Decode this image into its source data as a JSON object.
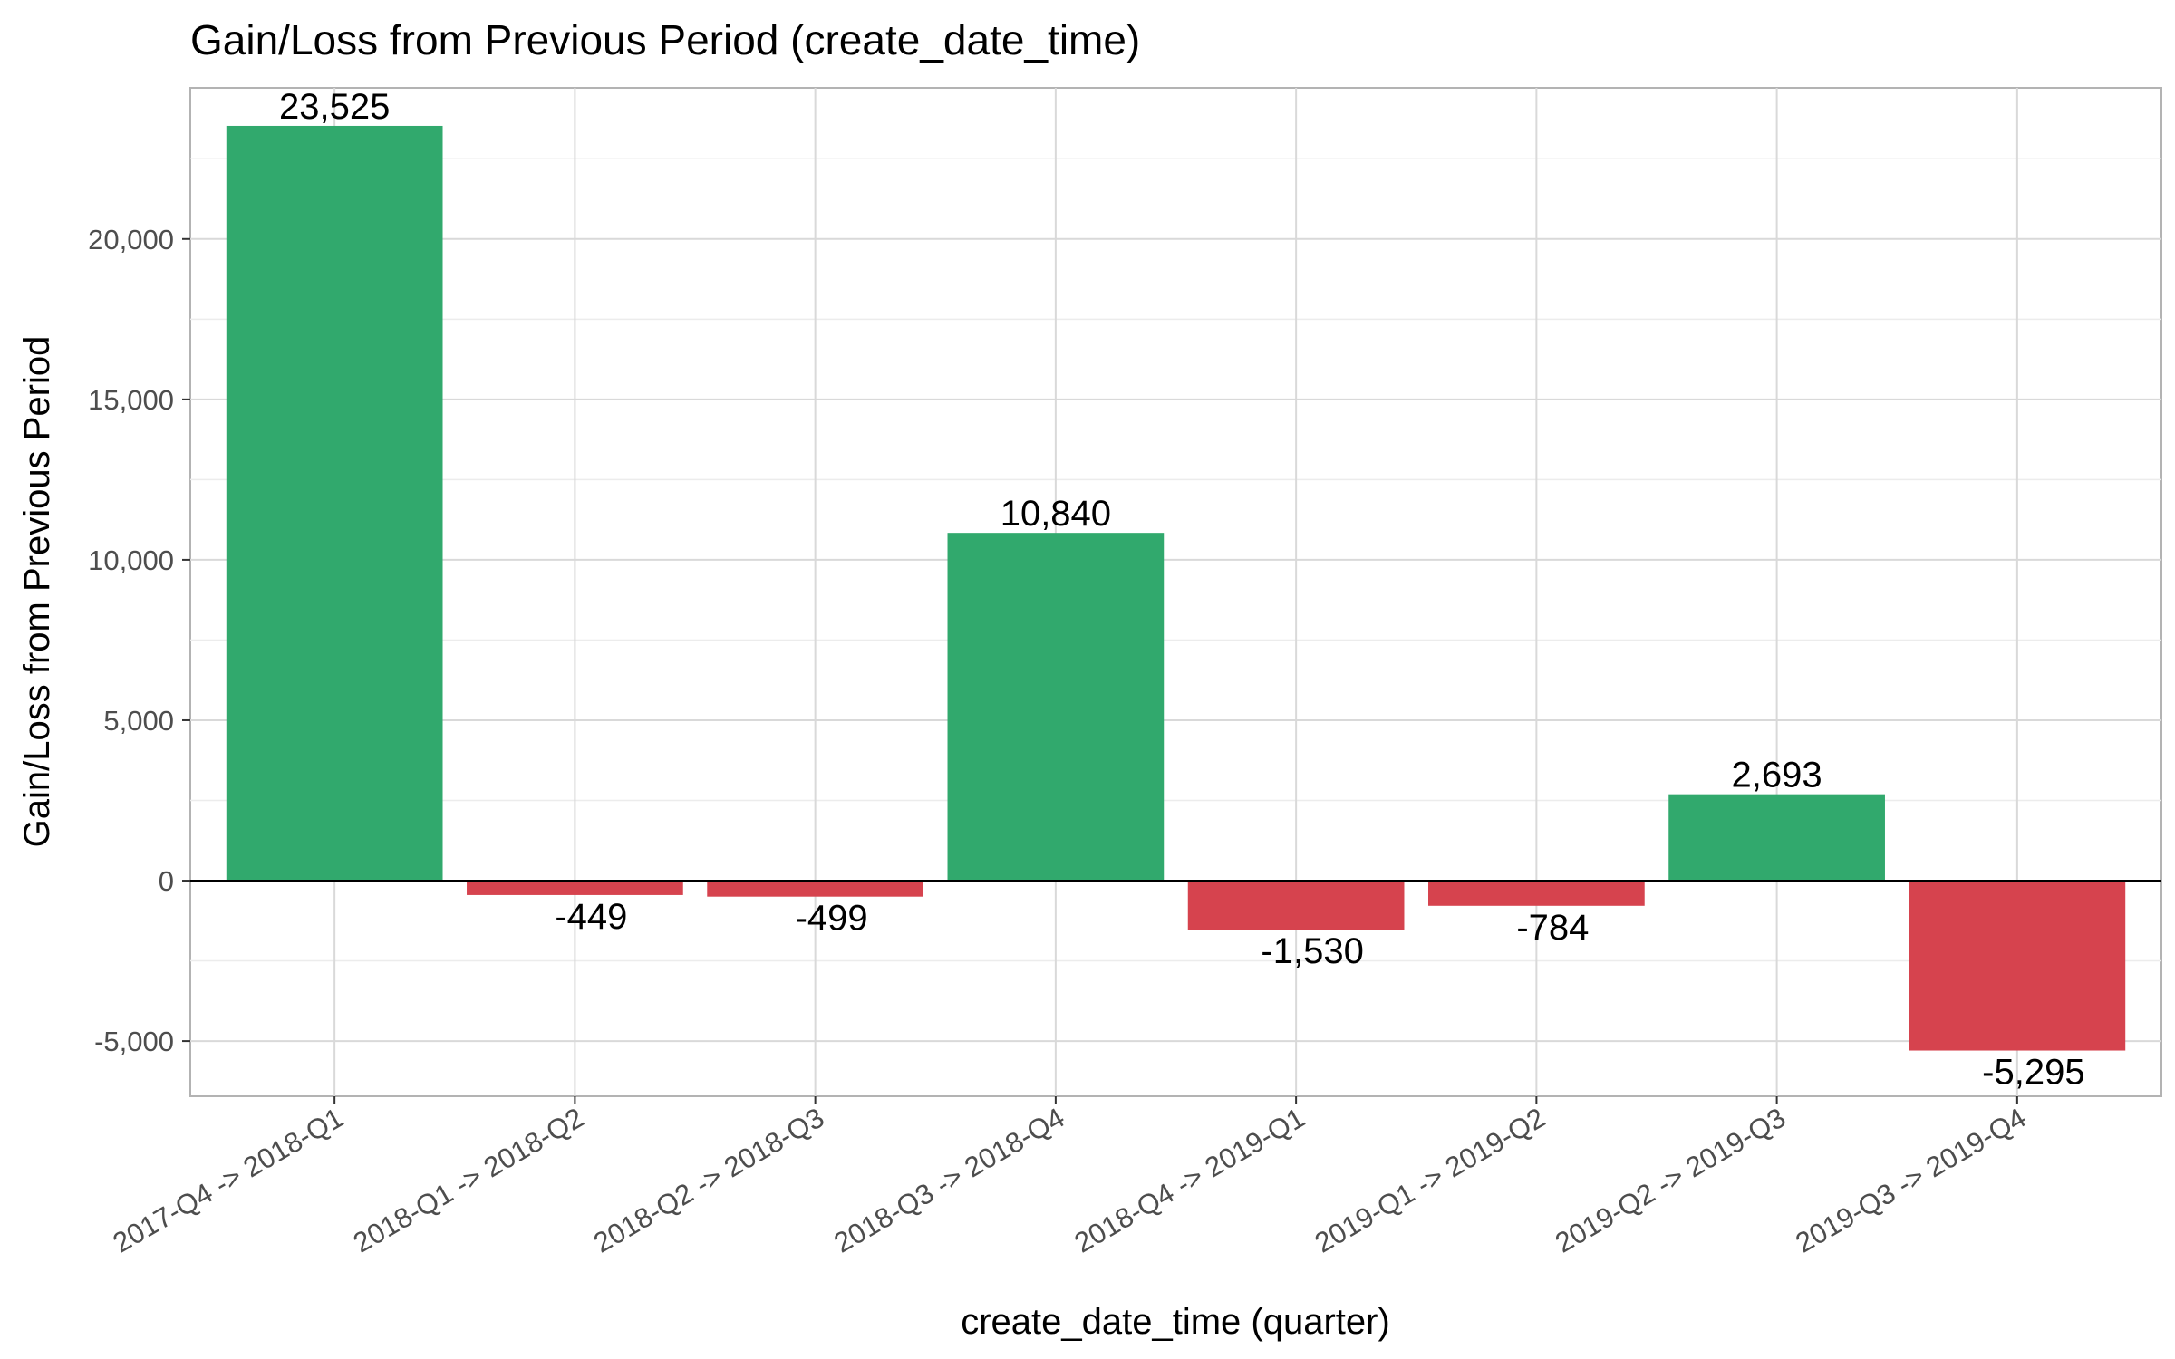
{
  "chart_data": {
    "type": "bar",
    "title": "Gain/Loss  from Previous Period (create_date_time)",
    "xlabel": "create_date_time (quarter)",
    "ylabel": "Gain/Loss  from Previous Period",
    "categories": [
      "2017-Q4 -> 2018-Q1",
      "2018-Q1 -> 2018-Q2",
      "2018-Q2 -> 2018-Q3",
      "2018-Q3 -> 2018-Q4",
      "2018-Q4 -> 2019-Q1",
      "2019-Q1 -> 2019-Q2",
      "2019-Q2 -> 2019-Q3",
      "2019-Q3 -> 2019-Q4"
    ],
    "values": [
      23525,
      -449,
      -499,
      10840,
      -1530,
      -784,
      2693,
      -5295
    ],
    "data_labels": [
      "23,525",
      "-449",
      "-499",
      "10,840",
      "-1,530",
      "-784",
      "2,693",
      "-5,295"
    ],
    "ylim": [
      -6720,
      24710
    ],
    "yticks": [
      -5000,
      0,
      5000,
      10000,
      15000,
      20000
    ],
    "ytick_labels": [
      "-5,000",
      "0",
      "5,000",
      "10,000",
      "15,000",
      "20,000"
    ],
    "grid": true,
    "legend": "none",
    "colors": {
      "gain": "#31a96d",
      "loss": "#d6434e"
    }
  }
}
